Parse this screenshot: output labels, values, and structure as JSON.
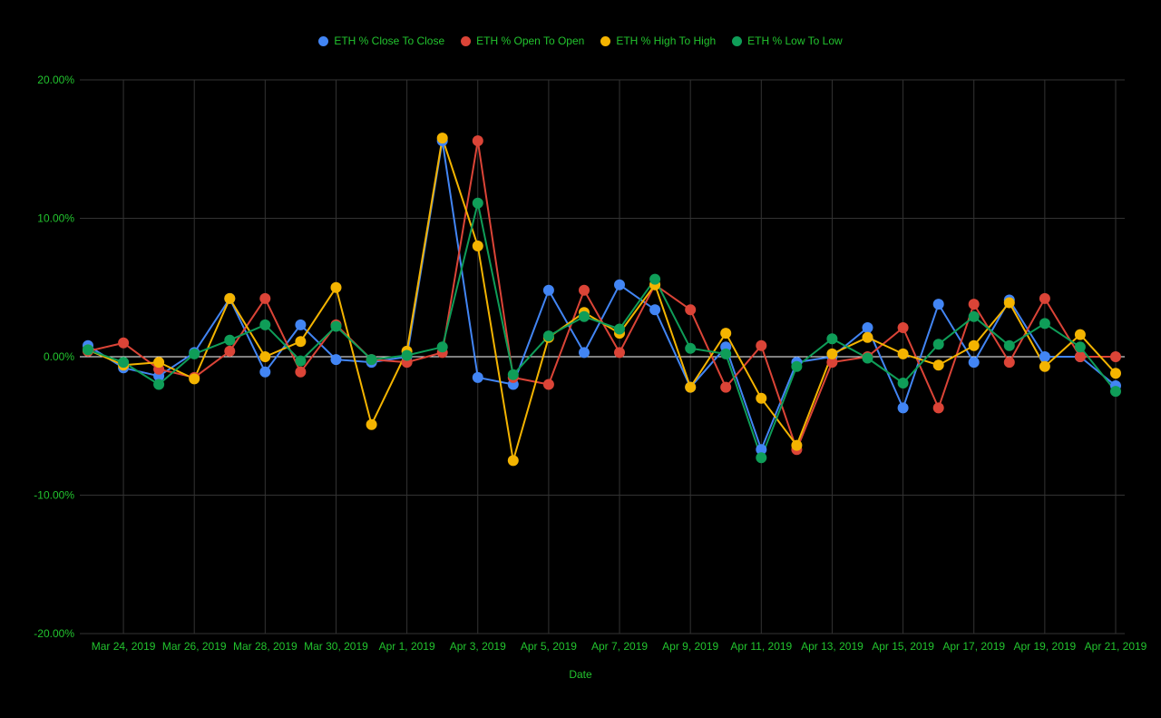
{
  "chart_data": {
    "type": "line",
    "xlabel": "Date",
    "ylabel": "",
    "ylim": [
      -20,
      20
    ],
    "y_ticks": [
      "20.00%",
      "10.00%",
      "0.00%",
      "-10.00%",
      "-20.00%"
    ],
    "y_tick_values": [
      20,
      10,
      0,
      -10,
      -20
    ],
    "x_tick_labels": [
      "Mar 24, 2019",
      "Mar 26, 2019",
      "Mar 28, 2019",
      "Mar 30, 2019",
      "Apr 1, 2019",
      "Apr 3, 2019",
      "Apr 5, 2019",
      "Apr 7, 2019",
      "Apr 9, 2019",
      "Apr 11, 2019",
      "Apr 13, 2019",
      "Apr 15, 2019",
      "Apr 17, 2019",
      "Apr 19, 2019",
      "Apr 21, 2019"
    ],
    "x": [
      "2019-03-23",
      "2019-03-24",
      "2019-03-25",
      "2019-03-26",
      "2019-03-27",
      "2019-03-28",
      "2019-03-29",
      "2019-03-30",
      "2019-03-31",
      "2019-04-01",
      "2019-04-02",
      "2019-04-03",
      "2019-04-04",
      "2019-04-05",
      "2019-04-06",
      "2019-04-07",
      "2019-04-08",
      "2019-04-09",
      "2019-04-10",
      "2019-04-11",
      "2019-04-12",
      "2019-04-13",
      "2019-04-14",
      "2019-04-15",
      "2019-04-16",
      "2019-04-17",
      "2019-04-18",
      "2019-04-19",
      "2019-04-20",
      "2019-04-21"
    ],
    "grid": true,
    "legend_position": "top",
    "text_color": "#22c32e",
    "background": "#000000",
    "series": [
      {
        "name": "ETH % Close To Close",
        "color": "#4285f4",
        "values": [
          0.8,
          -0.8,
          -1.4,
          0.3,
          4.2,
          -1.1,
          2.3,
          -0.2,
          -0.4,
          0.0,
          15.6,
          -1.5,
          -2.0,
          4.8,
          0.3,
          5.2,
          3.4,
          -2.2,
          0.7,
          -6.7,
          -0.4,
          0.0,
          2.1,
          -3.7,
          3.8,
          -0.4,
          4.1,
          0.0,
          0.0,
          -2.1
        ]
      },
      {
        "name": "ETH % Open To Open",
        "color": "#db4437",
        "values": [
          0.4,
          1.0,
          -0.9,
          -1.5,
          0.4,
          4.2,
          -1.1,
          2.3,
          -0.2,
          -0.4,
          0.3,
          15.6,
          -1.5,
          -2.0,
          4.8,
          0.3,
          5.2,
          3.4,
          -2.2,
          0.8,
          -6.7,
          -0.4,
          0.0,
          2.1,
          -3.7,
          3.8,
          -0.4,
          4.2,
          0.0,
          0.0
        ]
      },
      {
        "name": "ETH % High To High",
        "color": "#f4b400",
        "values": [
          0.5,
          -0.6,
          -0.4,
          -1.6,
          4.2,
          0.0,
          1.1,
          5.0,
          -4.9,
          0.4,
          15.8,
          8.0,
          -7.5,
          1.4,
          3.2,
          1.7,
          5.2,
          -2.2,
          1.7,
          -3.0,
          -6.4,
          0.2,
          1.4,
          0.2,
          -0.6,
          0.8,
          3.9,
          -0.7,
          1.6,
          -1.2
        ]
      },
      {
        "name": "ETH % Low To Low",
        "color": "#0f9d58",
        "values": [
          0.5,
          -0.4,
          -2.0,
          0.2,
          1.2,
          2.3,
          -0.3,
          2.2,
          -0.2,
          0.1,
          0.7,
          11.1,
          -1.3,
          1.5,
          2.9,
          2.0,
          5.6,
          0.6,
          0.2,
          -7.3,
          -0.7,
          1.3,
          -0.1,
          -1.9,
          0.9,
          2.9,
          0.8,
          2.4,
          0.7,
          -2.5
        ]
      }
    ]
  }
}
